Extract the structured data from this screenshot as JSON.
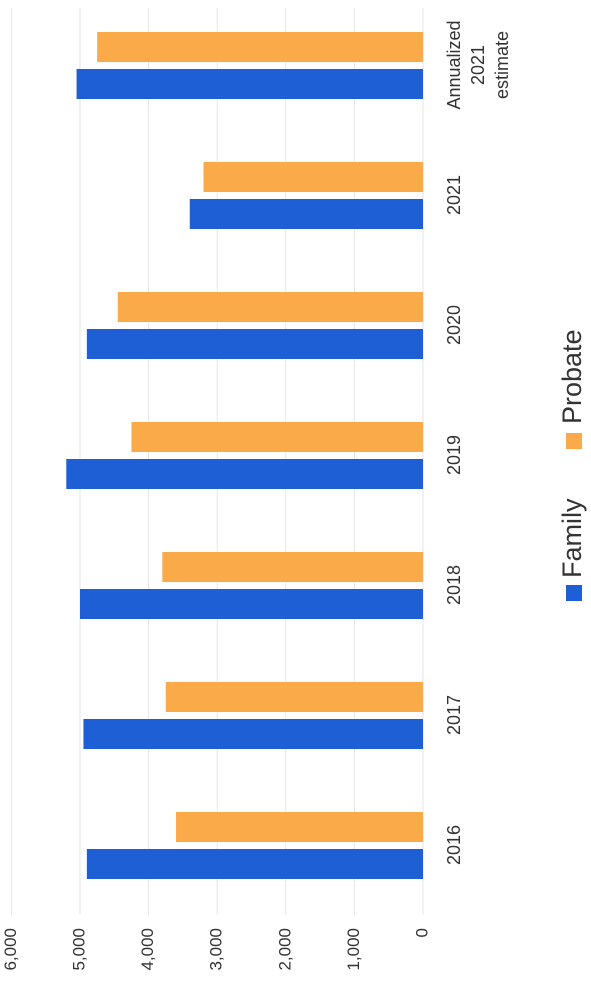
{
  "chart_data": {
    "type": "bar",
    "orientation": "rotated-90-clockwise",
    "title": "",
    "xlabel": "",
    "ylabel": "",
    "categories": [
      "2016",
      "2017",
      "2018",
      "2019",
      "2020",
      "2021",
      "Annualized 2021 estimate"
    ],
    "category_label_lines": [
      [
        "2016"
      ],
      [
        "2017"
      ],
      [
        "2018"
      ],
      [
        "2019"
      ],
      [
        "2020"
      ],
      [
        "2021"
      ],
      [
        "Annualized",
        "2021",
        "estimate"
      ]
    ],
    "series": [
      {
        "name": "Family",
        "color": "#1F5FD6",
        "values": [
          4900,
          4950,
          5000,
          5200,
          4900,
          3400,
          5050
        ]
      },
      {
        "name": "Probate",
        "color": "#FBAA4A",
        "values": [
          3600,
          3750,
          3800,
          4250,
          4450,
          3200,
          4750
        ]
      }
    ],
    "ylim": [
      0,
      6000
    ],
    "yticks": [
      0,
      1000,
      2000,
      3000,
      4000,
      5000,
      6000
    ],
    "ytick_labels": [
      "0",
      "1,000",
      "2,000",
      "3,000",
      "4,000",
      "5,000",
      "6,000"
    ],
    "grid": true,
    "legend_position": "bottom"
  }
}
